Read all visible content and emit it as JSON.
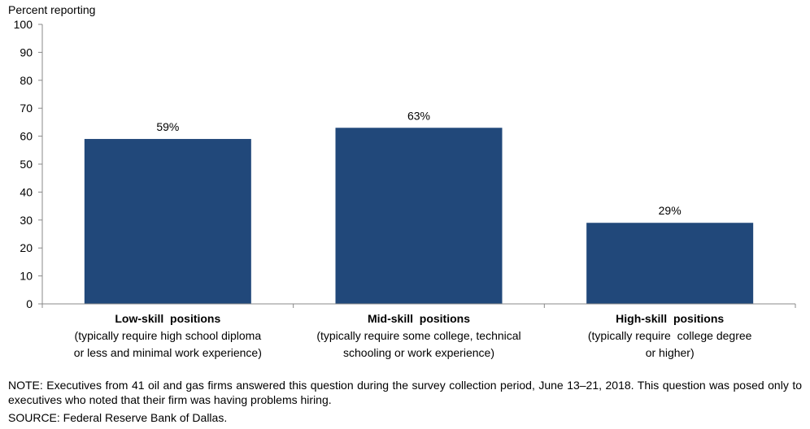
{
  "chart_data": {
    "type": "bar",
    "ylabel": "Percent reporting",
    "ylim": [
      0,
      100
    ],
    "yticks": [
      0,
      10,
      20,
      30,
      40,
      50,
      60,
      70,
      80,
      90,
      100
    ],
    "categories": [
      {
        "name": "Low-skill  positions",
        "description_lines": [
          "(typically require high school diploma",
          "or less and minimal work experience)"
        ]
      },
      {
        "name": "Mid-skill  positions",
        "description_lines": [
          "(typically require some college, technical",
          "schooling or work experience)"
        ]
      },
      {
        "name": "High-skill  positions",
        "description_lines": [
          "(typically require  college degree",
          "or higher)"
        ]
      }
    ],
    "values": [
      59,
      63,
      29
    ],
    "data_labels": [
      "59%",
      "63%",
      "29%"
    ],
    "bar_color": "#21487A",
    "grid": false,
    "legend": "none"
  },
  "footnotes": {
    "note": "NOTE:  Executives  from  41  oil  and  gas  firms  answered  this  question  during  the  survey  collection  period,  June  13–21,  2018.  This question  was  posed  only  to  executives  who  noted  that  their  firm  was  having  problems  hiring.",
    "source": "SOURCE:  Federal  Reserve  Bank  of  Dallas."
  }
}
